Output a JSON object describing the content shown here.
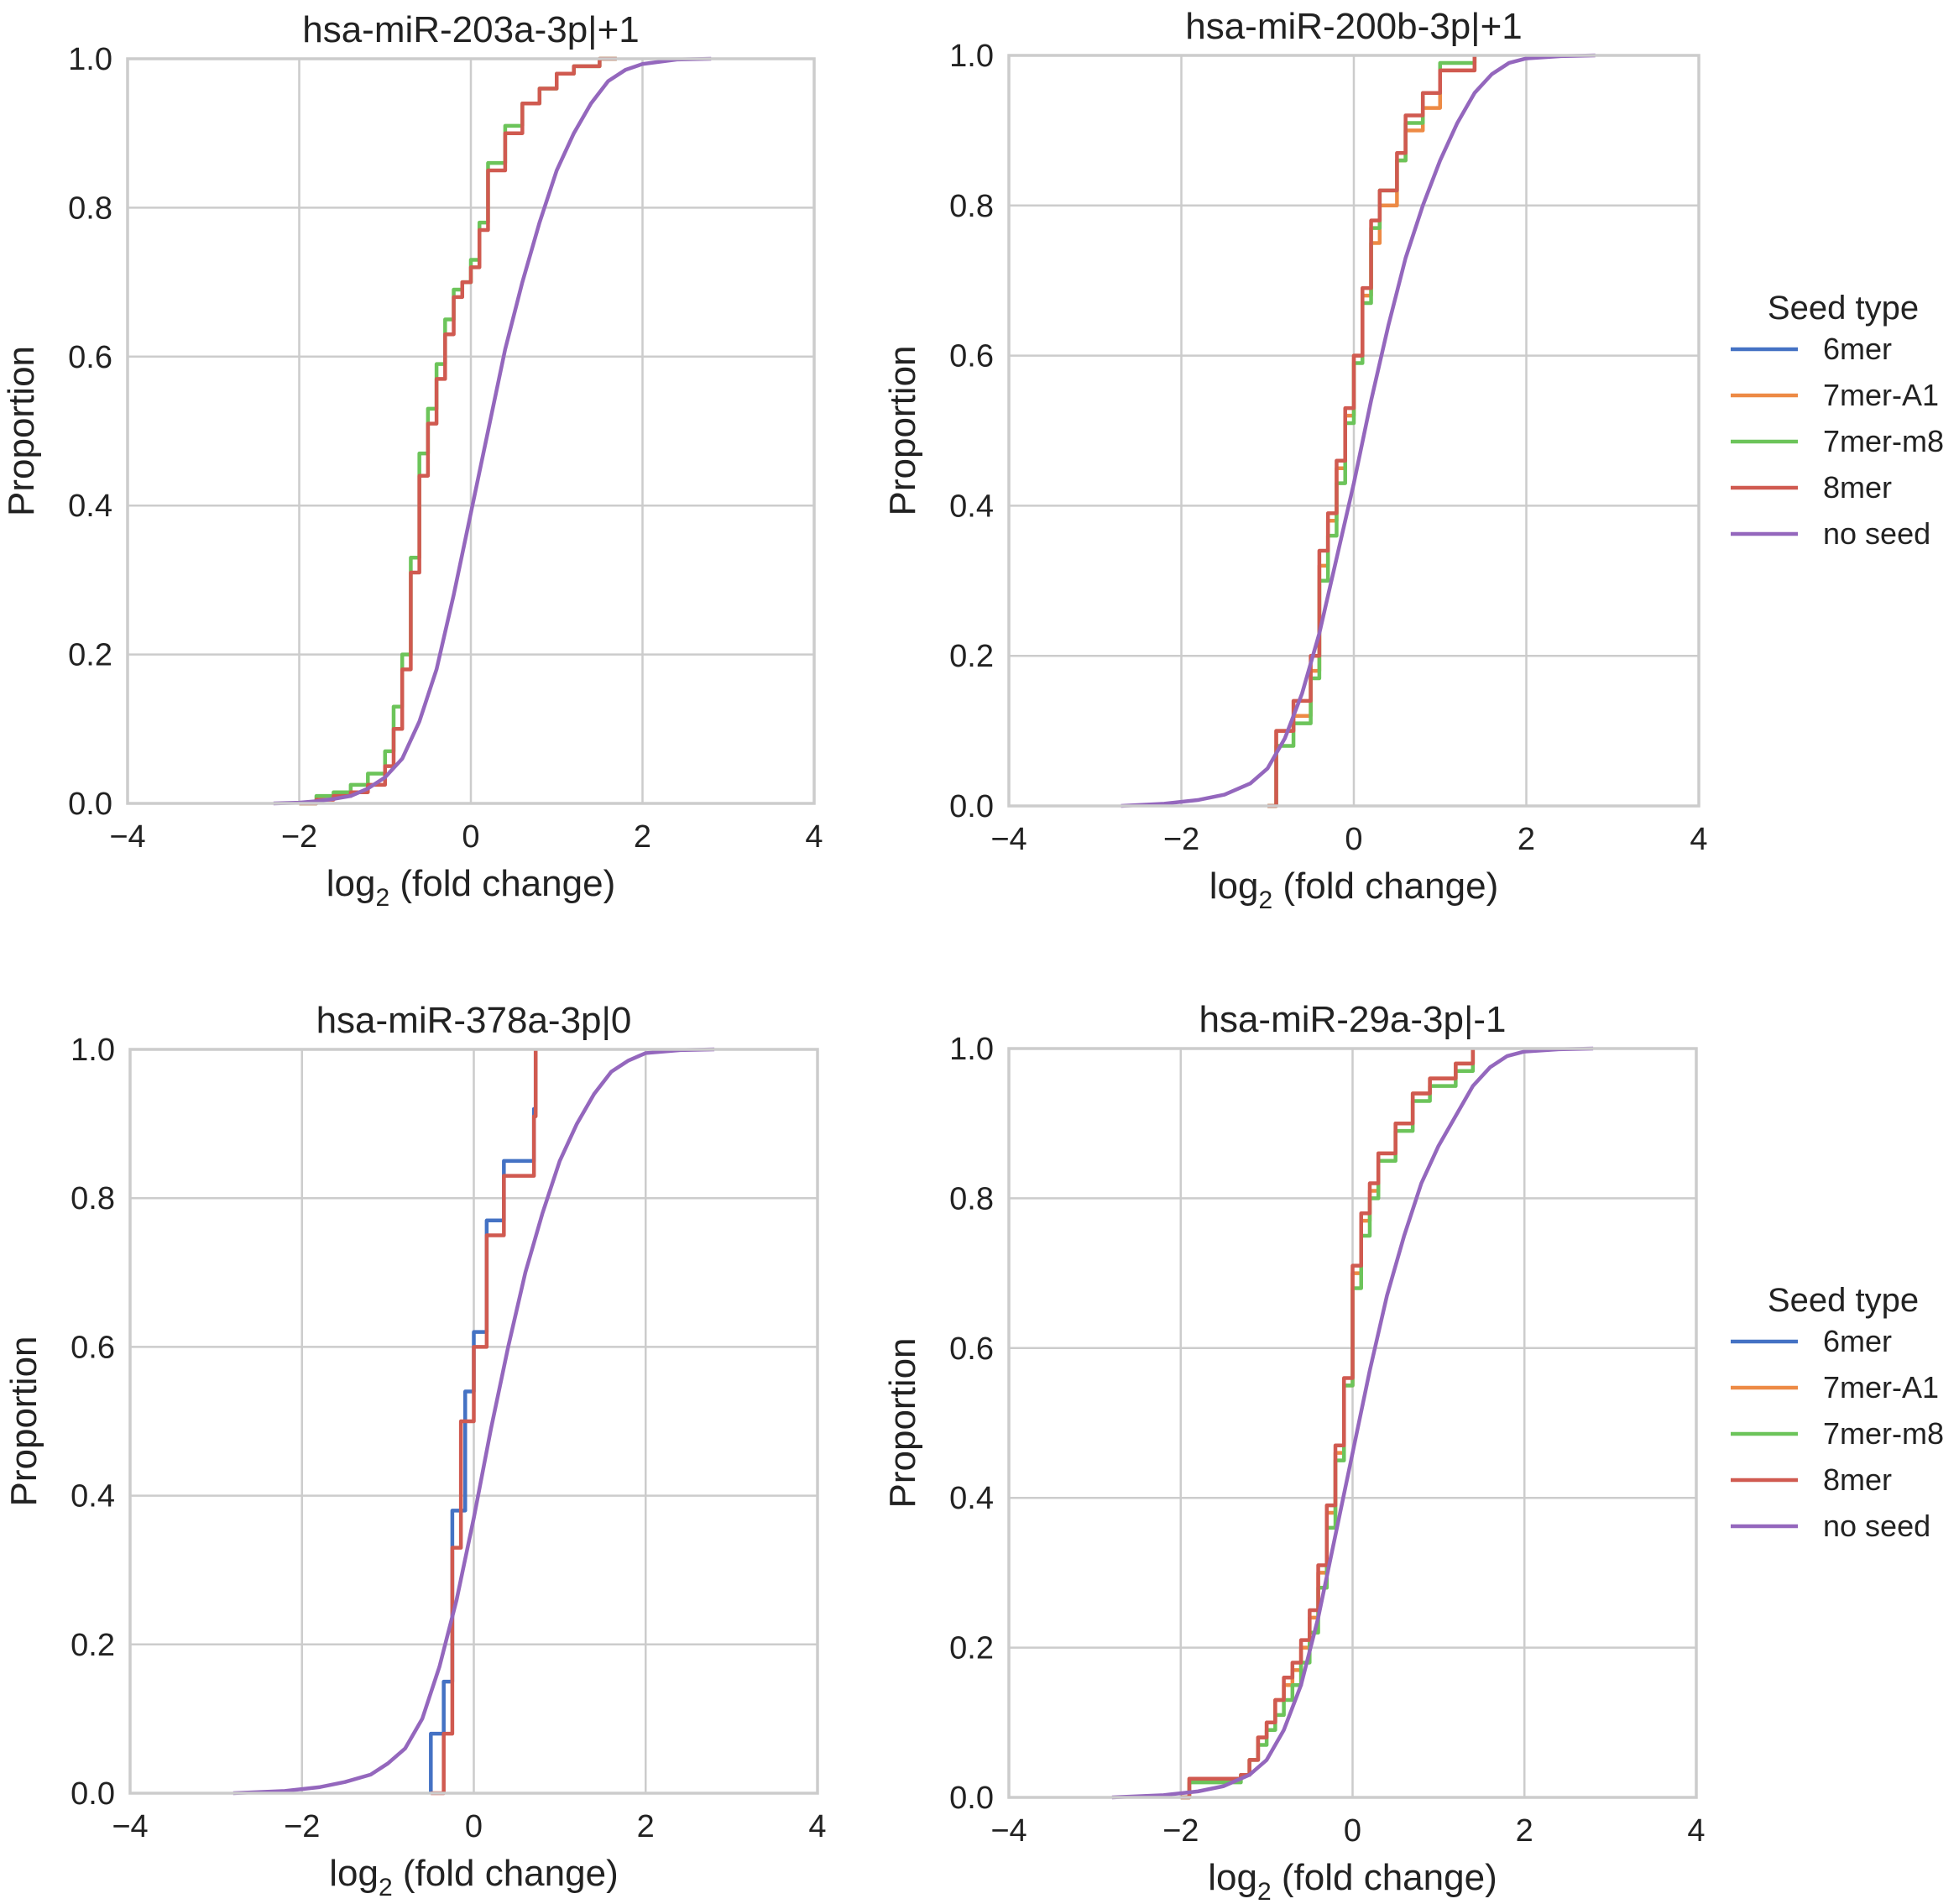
{
  "figure": {
    "ylabel": "Proportion",
    "xlabel_main": "log",
    "xlabel_sub": "2",
    "xlabel_rest": " (fold change)"
  },
  "legend": {
    "title": "Seed type",
    "entries": [
      {
        "name": "6mer",
        "color": "#4472c4"
      },
      {
        "name": "7mer-A1",
        "color": "#ed8a45"
      },
      {
        "name": "7mer-m8",
        "color": "#6cc45a"
      },
      {
        "name": "8mer",
        "color": "#d05a50"
      },
      {
        "name": "no seed",
        "color": "#9467bd"
      }
    ]
  },
  "chart_data": [
    {
      "type": "line",
      "subtype": "ecdf",
      "title": "hsa-miR-203a-3p|+1",
      "xlabel": "log2 (fold change)",
      "ylabel": "Proportion",
      "xlim": [
        -4,
        4
      ],
      "ylim": [
        0,
        1
      ],
      "xticks": [
        -4,
        -2,
        0,
        2,
        4
      ],
      "xtick_labels": [
        "−4",
        "−2",
        "0",
        "2",
        "4"
      ],
      "yticks": [
        0,
        0.2,
        0.4,
        0.6,
        0.8,
        1.0
      ],
      "ytick_labels": [
        "0.0",
        "0.2",
        "0.4",
        "0.6",
        "0.8",
        "1.0"
      ],
      "grid": true,
      "series": [
        {
          "name": "7mer-m8",
          "step": true,
          "x": [
            -2.0,
            -1.8,
            -1.6,
            -1.4,
            -1.2,
            -1.0,
            -0.9,
            -0.8,
            -0.7,
            -0.6,
            -0.5,
            -0.4,
            -0.3,
            -0.2,
            -0.1,
            0.0,
            0.1,
            0.2,
            0.4,
            0.6,
            0.8,
            1.0,
            1.2,
            1.5,
            1.7
          ],
          "y": [
            0.0,
            0.01,
            0.015,
            0.025,
            0.04,
            0.07,
            0.13,
            0.2,
            0.33,
            0.47,
            0.53,
            0.59,
            0.65,
            0.69,
            0.7,
            0.73,
            0.78,
            0.86,
            0.91,
            0.94,
            0.96,
            0.98,
            0.99,
            1.0,
            1.0
          ]
        },
        {
          "name": "8mer",
          "step": true,
          "x": [
            -2.0,
            -1.8,
            -1.6,
            -1.4,
            -1.2,
            -1.0,
            -0.9,
            -0.8,
            -0.7,
            -0.6,
            -0.5,
            -0.4,
            -0.3,
            -0.2,
            -0.1,
            0.0,
            0.1,
            0.2,
            0.4,
            0.6,
            0.8,
            1.0,
            1.2,
            1.5,
            1.7
          ],
          "y": [
            0.0,
            0.005,
            0.01,
            0.015,
            0.025,
            0.05,
            0.1,
            0.18,
            0.31,
            0.44,
            0.51,
            0.57,
            0.63,
            0.68,
            0.7,
            0.72,
            0.77,
            0.85,
            0.9,
            0.94,
            0.96,
            0.98,
            0.99,
            1.0,
            1.0
          ]
        },
        {
          "name": "no seed",
          "step": false,
          "x": [
            -2.3,
            -2.0,
            -1.8,
            -1.6,
            -1.4,
            -1.2,
            -1.0,
            -0.8,
            -0.6,
            -0.4,
            -0.2,
            0.0,
            0.2,
            0.4,
            0.6,
            0.8,
            1.0,
            1.2,
            1.4,
            1.6,
            1.8,
            2.0,
            2.4,
            2.8
          ],
          "y": [
            0.0,
            0.001,
            0.003,
            0.006,
            0.01,
            0.02,
            0.035,
            0.06,
            0.11,
            0.18,
            0.28,
            0.39,
            0.5,
            0.61,
            0.7,
            0.78,
            0.85,
            0.9,
            0.94,
            0.97,
            0.985,
            0.993,
            0.999,
            1.0
          ]
        }
      ]
    },
    {
      "type": "line",
      "subtype": "ecdf",
      "title": "hsa-miR-200b-3p|+1",
      "xlabel": "log2 (fold change)",
      "ylabel": "Proportion",
      "xlim": [
        -4,
        4
      ],
      "ylim": [
        0,
        1
      ],
      "xticks": [
        -4,
        -2,
        0,
        2,
        4
      ],
      "xtick_labels": [
        "−4",
        "−2",
        "0",
        "2",
        "4"
      ],
      "yticks": [
        0,
        0.2,
        0.4,
        0.6,
        0.8,
        1.0
      ],
      "ytick_labels": [
        "0.0",
        "0.2",
        "0.4",
        "0.6",
        "0.8",
        "1.0"
      ],
      "grid": true,
      "series": [
        {
          "name": "7mer-A1",
          "step": true,
          "x": [
            -1.0,
            -0.9,
            -0.7,
            -0.5,
            -0.4,
            -0.3,
            -0.2,
            -0.1,
            0.0,
            0.1,
            0.2,
            0.3,
            0.5,
            0.6,
            0.8,
            1.0,
            1.4
          ],
          "y": [
            0.0,
            0.1,
            0.12,
            0.18,
            0.32,
            0.38,
            0.45,
            0.52,
            0.6,
            0.68,
            0.75,
            0.8,
            0.86,
            0.9,
            0.93,
            0.98,
            1.0
          ]
        },
        {
          "name": "7mer-m8",
          "step": true,
          "x": [
            -1.0,
            -0.9,
            -0.7,
            -0.5,
            -0.4,
            -0.3,
            -0.2,
            -0.1,
            0.0,
            0.1,
            0.2,
            0.3,
            0.5,
            0.6,
            0.8,
            1.0,
            1.4
          ],
          "y": [
            0.0,
            0.08,
            0.11,
            0.17,
            0.3,
            0.36,
            0.43,
            0.51,
            0.59,
            0.67,
            0.77,
            0.82,
            0.86,
            0.91,
            0.95,
            0.99,
            1.0
          ]
        },
        {
          "name": "8mer",
          "step": true,
          "x": [
            -1.0,
            -0.9,
            -0.7,
            -0.5,
            -0.4,
            -0.3,
            -0.2,
            -0.1,
            0.0,
            0.1,
            0.2,
            0.3,
            0.5,
            0.6,
            0.8,
            1.0,
            1.4
          ],
          "y": [
            0.0,
            0.1,
            0.14,
            0.2,
            0.34,
            0.39,
            0.46,
            0.53,
            0.6,
            0.69,
            0.78,
            0.82,
            0.87,
            0.92,
            0.95,
            0.98,
            1.0
          ]
        },
        {
          "name": "no seed",
          "step": false,
          "x": [
            -2.7,
            -2.2,
            -1.8,
            -1.5,
            -1.2,
            -1.0,
            -0.8,
            -0.6,
            -0.4,
            -0.2,
            0.0,
            0.2,
            0.4,
            0.6,
            0.8,
            1.0,
            1.2,
            1.4,
            1.6,
            1.8,
            2.0,
            2.4,
            2.8
          ],
          "y": [
            0.0,
            0.003,
            0.008,
            0.015,
            0.03,
            0.05,
            0.09,
            0.15,
            0.23,
            0.33,
            0.43,
            0.54,
            0.64,
            0.73,
            0.8,
            0.86,
            0.91,
            0.95,
            0.975,
            0.99,
            0.996,
            0.999,
            1.0
          ]
        }
      ]
    },
    {
      "type": "line",
      "subtype": "ecdf",
      "title": "hsa-miR-378a-3p|0",
      "xlabel": "log2 (fold change)",
      "ylabel": "Proportion",
      "xlim": [
        -4,
        4
      ],
      "ylim": [
        0,
        1
      ],
      "xticks": [
        -4,
        -2,
        0,
        2,
        4
      ],
      "xtick_labels": [
        "−4",
        "−2",
        "0",
        "2",
        "4"
      ],
      "yticks": [
        0,
        0.2,
        0.4,
        0.6,
        0.8,
        1.0
      ],
      "ytick_labels": [
        "0.0",
        "0.2",
        "0.4",
        "0.6",
        "0.8",
        "1.0"
      ],
      "grid": true,
      "series": [
        {
          "name": "6mer",
          "step": true,
          "x": [
            -0.5,
            -0.35,
            -0.25,
            -0.1,
            0.0,
            0.15,
            0.35,
            0.7,
            0.72
          ],
          "y": [
            0.08,
            0.15,
            0.38,
            0.54,
            0.62,
            0.77,
            0.85,
            0.92,
            1.0
          ]
        },
        {
          "name": "8mer",
          "step": true,
          "x": [
            -0.5,
            -0.35,
            -0.25,
            -0.15,
            0.0,
            0.15,
            0.35,
            0.7,
            0.72
          ],
          "y": [
            0.0,
            0.08,
            0.33,
            0.5,
            0.6,
            0.75,
            0.83,
            0.91,
            1.0
          ]
        },
        {
          "name": "no seed",
          "step": false,
          "x": [
            -2.8,
            -2.2,
            -1.8,
            -1.5,
            -1.2,
            -1.0,
            -0.8,
            -0.6,
            -0.4,
            -0.2,
            0.0,
            0.2,
            0.4,
            0.6,
            0.8,
            1.0,
            1.2,
            1.4,
            1.6,
            1.8,
            2.0,
            2.4,
            2.8
          ],
          "y": [
            0.0,
            0.003,
            0.008,
            0.015,
            0.025,
            0.04,
            0.06,
            0.1,
            0.17,
            0.26,
            0.37,
            0.49,
            0.6,
            0.7,
            0.78,
            0.85,
            0.9,
            0.94,
            0.97,
            0.985,
            0.995,
            0.999,
            1.0
          ]
        }
      ]
    },
    {
      "type": "line",
      "subtype": "ecdf",
      "title": "hsa-miR-29a-3p|-1",
      "xlabel": "log2 (fold change)",
      "ylabel": "Proportion",
      "xlim": [
        -4,
        4
      ],
      "ylim": [
        0,
        1
      ],
      "xticks": [
        -4,
        -2,
        0,
        2,
        4
      ],
      "xtick_labels": [
        "−4",
        "−2",
        "0",
        "2",
        "4"
      ],
      "yticks": [
        0,
        0.2,
        0.4,
        0.6,
        0.8,
        1.0
      ],
      "ytick_labels": [
        "0.0",
        "0.2",
        "0.4",
        "0.6",
        "0.8",
        "1.0"
      ],
      "grid": true,
      "series": [
        {
          "name": "7mer-A1",
          "step": true,
          "x": [
            -2.0,
            -1.9,
            -1.3,
            -1.2,
            -1.1,
            -1.0,
            -0.9,
            -0.8,
            -0.7,
            -0.6,
            -0.5,
            -0.4,
            -0.3,
            -0.2,
            -0.1,
            0.0,
            0.1,
            0.2,
            0.3,
            0.5,
            0.7,
            0.9,
            1.2,
            1.4
          ],
          "y": [
            0.0,
            0.025,
            0.03,
            0.05,
            0.08,
            0.1,
            0.13,
            0.15,
            0.17,
            0.2,
            0.24,
            0.3,
            0.38,
            0.46,
            0.55,
            0.7,
            0.77,
            0.81,
            0.86,
            0.9,
            0.94,
            0.96,
            0.98,
            1.0
          ]
        },
        {
          "name": "7mer-m8",
          "step": true,
          "x": [
            -2.0,
            -1.9,
            -1.3,
            -1.2,
            -1.1,
            -1.0,
            -0.9,
            -0.8,
            -0.7,
            -0.6,
            -0.5,
            -0.4,
            -0.3,
            -0.2,
            -0.1,
            0.0,
            0.1,
            0.2,
            0.3,
            0.5,
            0.7,
            0.9,
            1.2,
            1.4
          ],
          "y": [
            0.0,
            0.02,
            0.03,
            0.05,
            0.07,
            0.09,
            0.11,
            0.13,
            0.15,
            0.18,
            0.22,
            0.28,
            0.36,
            0.45,
            0.55,
            0.68,
            0.75,
            0.8,
            0.85,
            0.89,
            0.93,
            0.95,
            0.97,
            1.0
          ]
        },
        {
          "name": "8mer",
          "step": true,
          "x": [
            -2.0,
            -1.9,
            -1.3,
            -1.2,
            -1.1,
            -1.0,
            -0.9,
            -0.8,
            -0.7,
            -0.6,
            -0.5,
            -0.4,
            -0.3,
            -0.2,
            -0.1,
            0.0,
            0.1,
            0.2,
            0.3,
            0.5,
            0.7,
            0.9,
            1.2,
            1.4
          ],
          "y": [
            0.0,
            0.025,
            0.03,
            0.05,
            0.08,
            0.1,
            0.13,
            0.16,
            0.18,
            0.21,
            0.25,
            0.31,
            0.39,
            0.47,
            0.56,
            0.71,
            0.78,
            0.82,
            0.86,
            0.9,
            0.94,
            0.96,
            0.98,
            1.0
          ]
        },
        {
          "name": "no seed",
          "step": false,
          "x": [
            -2.8,
            -2.2,
            -1.8,
            -1.5,
            -1.2,
            -1.0,
            -0.8,
            -0.6,
            -0.4,
            -0.2,
            0.0,
            0.2,
            0.4,
            0.6,
            0.8,
            1.0,
            1.2,
            1.4,
            1.6,
            1.8,
            2.0,
            2.4,
            2.8
          ],
          "y": [
            0.0,
            0.003,
            0.008,
            0.015,
            0.03,
            0.05,
            0.09,
            0.15,
            0.24,
            0.35,
            0.46,
            0.57,
            0.67,
            0.75,
            0.82,
            0.87,
            0.91,
            0.95,
            0.975,
            0.99,
            0.996,
            0.999,
            1.0
          ]
        }
      ]
    }
  ]
}
